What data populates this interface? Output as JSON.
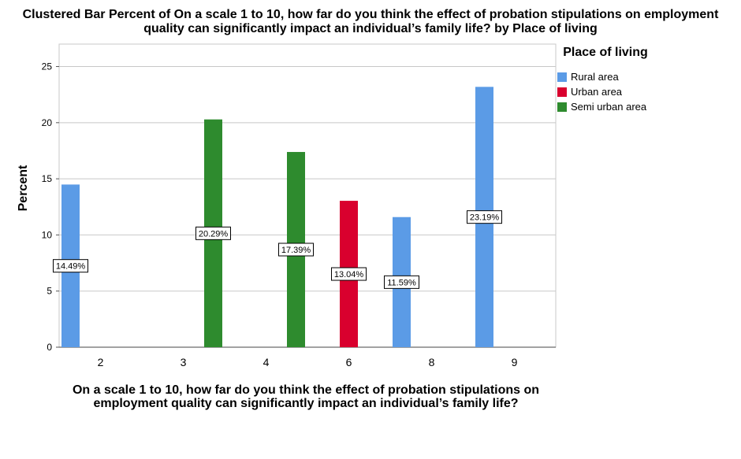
{
  "chart_data": {
    "type": "bar",
    "title": "Clustered Bar Percent of On a scale 1 to 10, how far do you think the effect of probation stipulations on employment quality can significantly impact an individual’s family life? by Place of living",
    "xlabel": "On a scale 1 to 10, how far do you think the effect of probation stipulations on employment quality can significantly impact an individual’s family life?",
    "ylabel": "Percent",
    "categories": [
      "2",
      "3",
      "4",
      "6",
      "8",
      "9"
    ],
    "ylim": [
      0,
      27
    ],
    "yticks": [
      0,
      5,
      10,
      15,
      20,
      25
    ],
    "grid": true,
    "legend_title": "Place of living",
    "legend_position": "right",
    "series": [
      {
        "name": "Rural area",
        "color": "#5B9BE6",
        "values": [
          14.49,
          null,
          null,
          null,
          11.59,
          23.19
        ],
        "labels": [
          "14.49%",
          "",
          "",
          "",
          "11.59%",
          "23.19%"
        ]
      },
      {
        "name": "Urban area",
        "color": "#D9002E",
        "values": [
          null,
          null,
          null,
          13.04,
          null,
          null
        ],
        "labels": [
          "",
          "",
          "",
          "13.04%",
          "",
          ""
        ]
      },
      {
        "name": "Semi urban area",
        "color": "#2E8B2E",
        "values": [
          null,
          20.29,
          17.39,
          null,
          null,
          null
        ],
        "labels": [
          "",
          "20.29%",
          "17.39%",
          "",
          "",
          ""
        ]
      }
    ]
  }
}
